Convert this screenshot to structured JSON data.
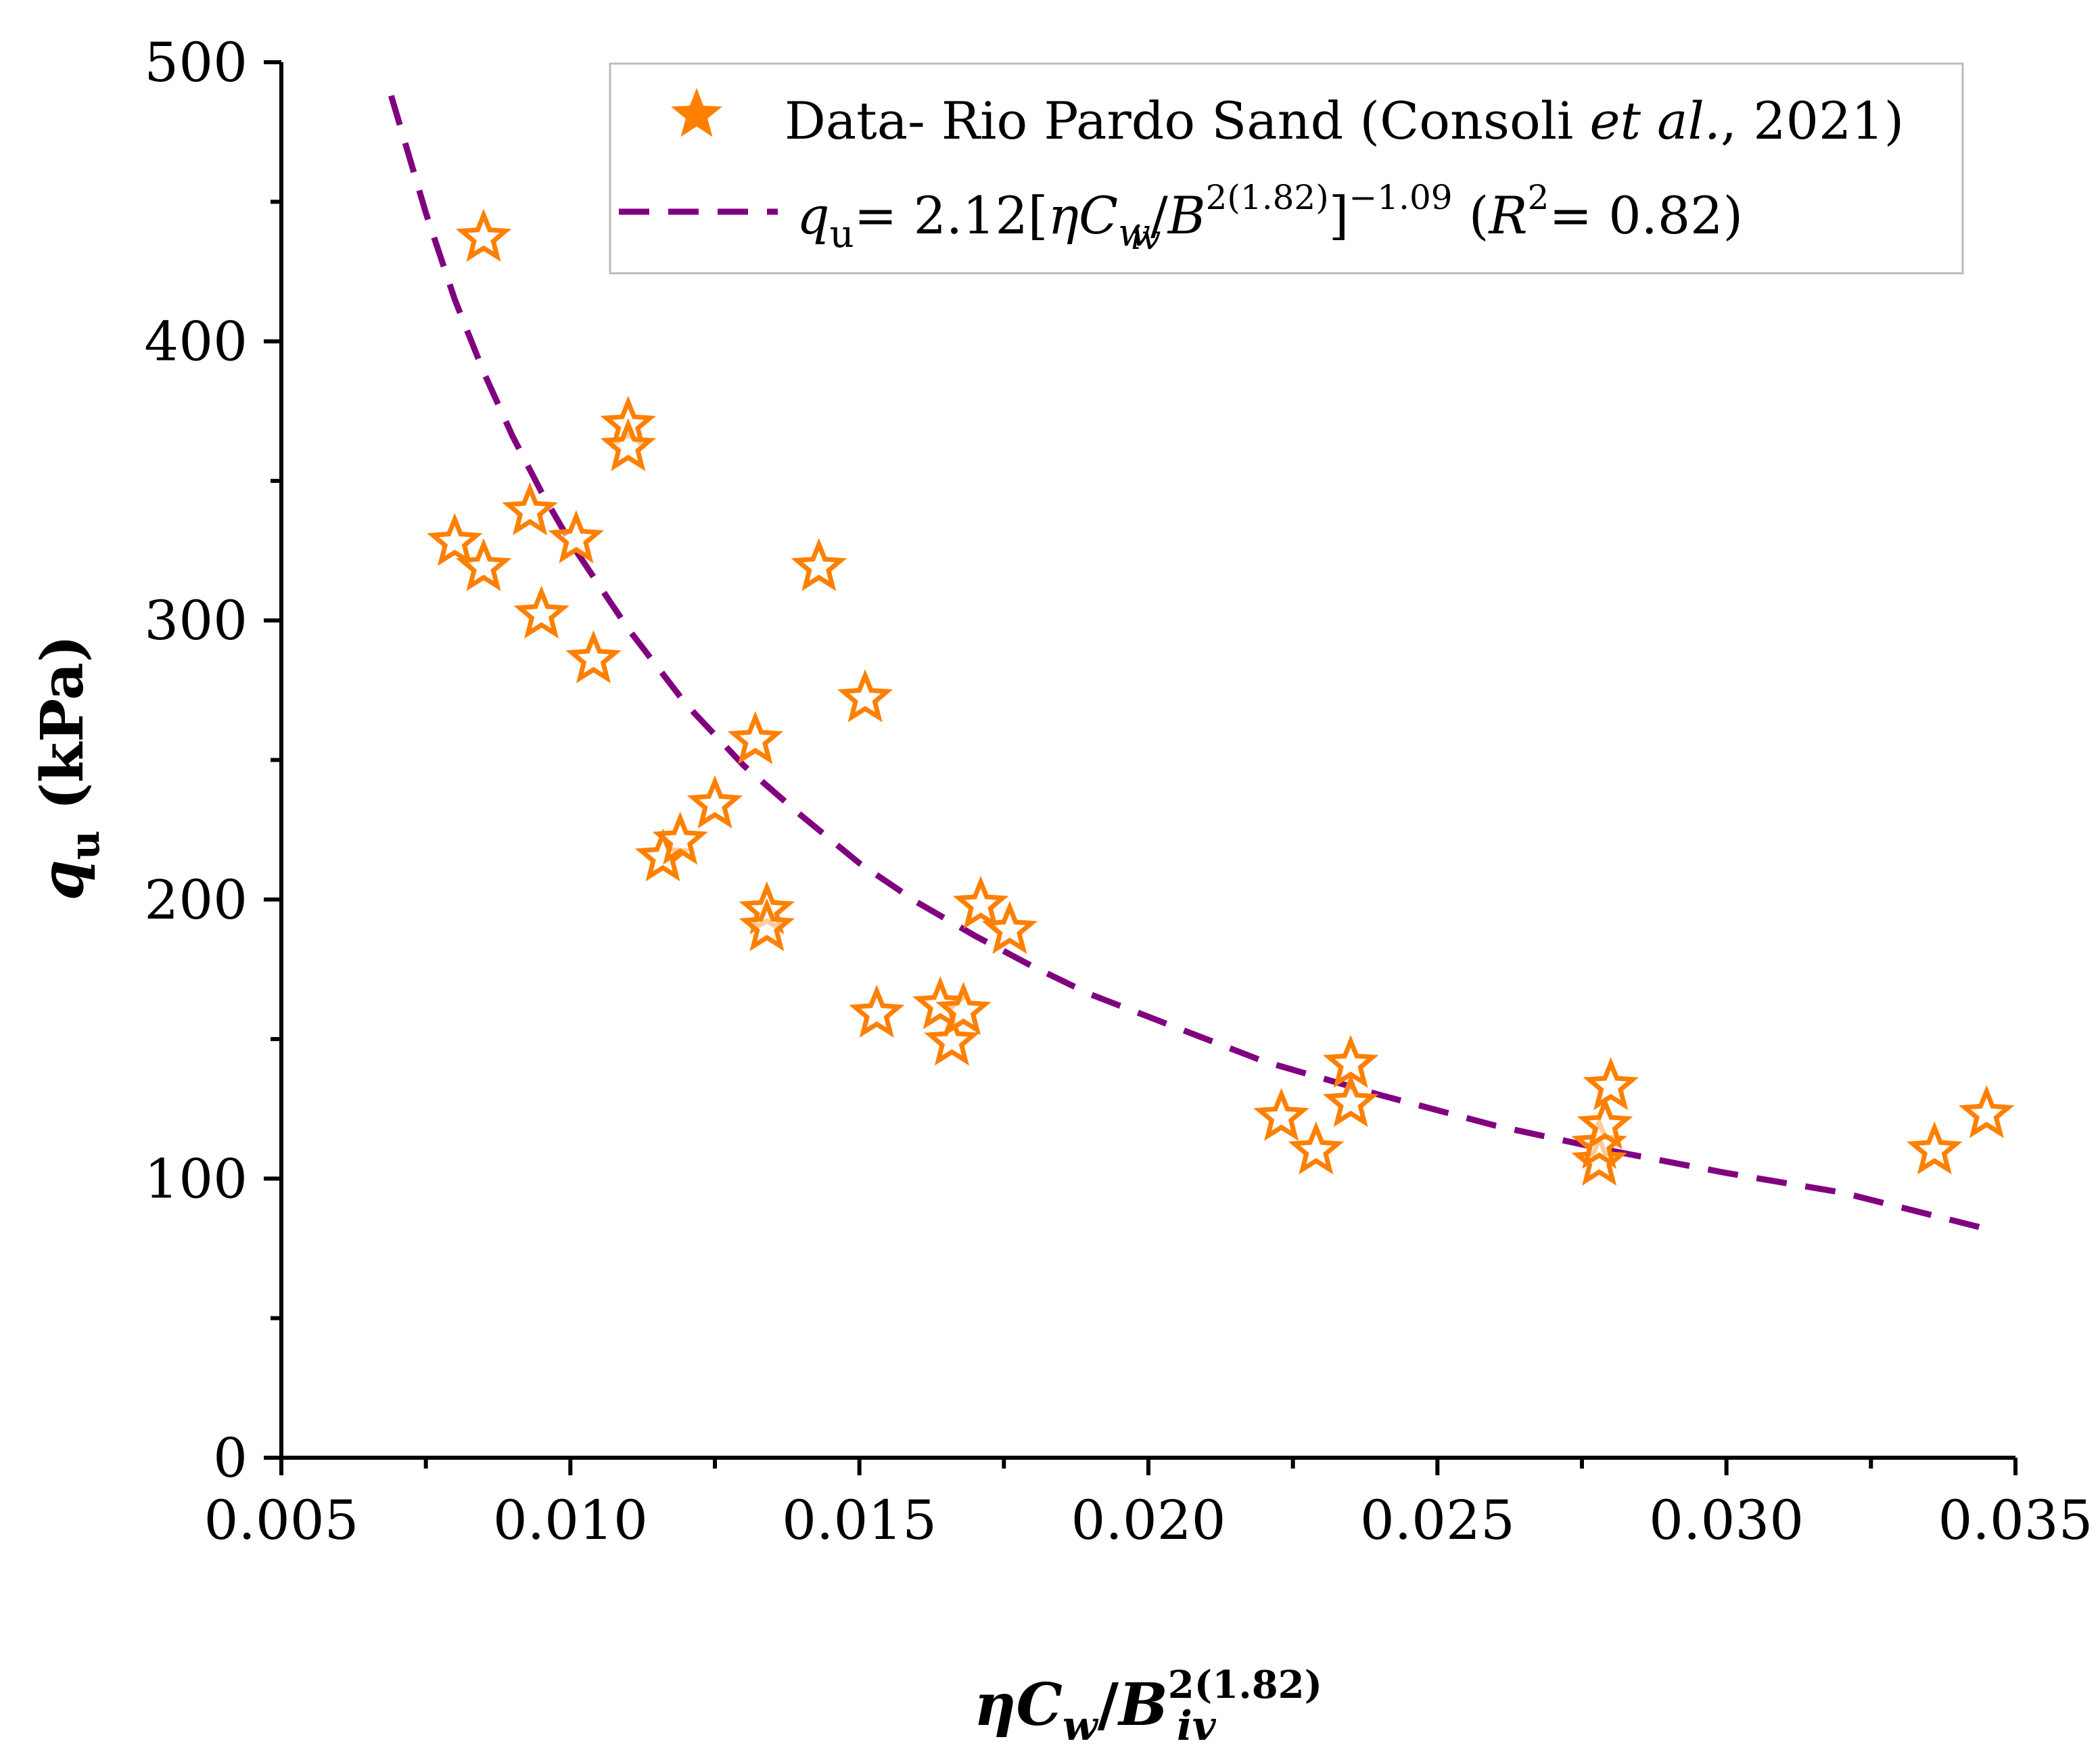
{
  "chart_data": {
    "type": "scatter",
    "title": "",
    "xlabel": "ηCw/Biv^2(1.82)",
    "xlabel_parts": {
      "eta": "η",
      "c": "C",
      "w": "w",
      "slash": "/",
      "b": "B",
      "sup": "2(1.82)",
      "sub": "iv"
    },
    "ylabel": "qu (kPa)",
    "ylabel_parts": {
      "q": "q",
      "sub": "u",
      "unit": " (kPa)"
    },
    "xlim": [
      0.005,
      0.035
    ],
    "ylim": [
      0,
      500
    ],
    "x_ticks": [
      0.005,
      0.01,
      0.015,
      0.02,
      0.025,
      0.03,
      0.035
    ],
    "x_tick_labels": [
      "0.005",
      "0.010",
      "0.015",
      "0.020",
      "0.025",
      "0.030",
      "0.035"
    ],
    "y_ticks": [
      0,
      100,
      200,
      300,
      400,
      500
    ],
    "y_tick_labels": [
      "0",
      "100",
      "200",
      "300",
      "400",
      "500"
    ],
    "grid": false,
    "legend_position": "top-right",
    "colors": {
      "data": "#FF8000",
      "fit": "#800080",
      "axis": "#000000",
      "legend_border": "#bbbbbb"
    },
    "series": [
      {
        "name": "Data- Rio Pardo Sand (Consoli et al., 2021)",
        "marker": "star-icon",
        "points": [
          {
            "x": 0.0085,
            "y": 437
          },
          {
            "x": 0.008,
            "y": 328
          },
          {
            "x": 0.0085,
            "y": 319
          },
          {
            "x": 0.0093,
            "y": 339
          },
          {
            "x": 0.0095,
            "y": 302
          },
          {
            "x": 0.0101,
            "y": 329
          },
          {
            "x": 0.0104,
            "y": 286
          },
          {
            "x": 0.011,
            "y": 370
          },
          {
            "x": 0.011,
            "y": 362
          },
          {
            "x": 0.0116,
            "y": 215
          },
          {
            "x": 0.0119,
            "y": 221
          },
          {
            "x": 0.0125,
            "y": 234
          },
          {
            "x": 0.0132,
            "y": 257
          },
          {
            "x": 0.0134,
            "y": 196
          },
          {
            "x": 0.0134,
            "y": 190
          },
          {
            "x": 0.0143,
            "y": 319
          },
          {
            "x": 0.0151,
            "y": 272
          },
          {
            "x": 0.0153,
            "y": 159
          },
          {
            "x": 0.0164,
            "y": 162
          },
          {
            "x": 0.0166,
            "y": 149
          },
          {
            "x": 0.0168,
            "y": 160
          },
          {
            "x": 0.0171,
            "y": 198
          },
          {
            "x": 0.0176,
            "y": 189
          },
          {
            "x": 0.0223,
            "y": 122
          },
          {
            "x": 0.0229,
            "y": 110
          },
          {
            "x": 0.0235,
            "y": 141
          },
          {
            "x": 0.0235,
            "y": 127
          },
          {
            "x": 0.0278,
            "y": 106
          },
          {
            "x": 0.0278,
            "y": 112
          },
          {
            "x": 0.0279,
            "y": 119
          },
          {
            "x": 0.028,
            "y": 133
          },
          {
            "x": 0.0336,
            "y": 110
          },
          {
            "x": 0.0345,
            "y": 123
          }
        ]
      },
      {
        "name": "qu= 2.12[ηCw/Biv^2(1.82)]^−1.09 (R^2= 0.82)",
        "style": "dashed",
        "curve": {
          "coefficient": 2.12,
          "exponent": -1.09,
          "r2": 0.82
        },
        "x": [
          0.0069,
          0.0075,
          0.008,
          0.0085,
          0.009,
          0.0095,
          0.01,
          0.011,
          0.012,
          0.013,
          0.014,
          0.015,
          0.016,
          0.017,
          0.018,
          0.019,
          0.02,
          0.022,
          0.024,
          0.026,
          0.028,
          0.03,
          0.032,
          0.0345
        ],
        "y": [
          488,
          446,
          415,
          389,
          366,
          346,
          328,
          297,
          270,
          248,
          230,
          213,
          199,
          187,
          176,
          166,
          158,
          142,
          130,
          119,
          110,
          102,
          95,
          82
        ]
      }
    ],
    "legend": {
      "data_label": "Data- Rio Pardo Sand (Consoli ",
      "data_label_italic": "et al.",
      "data_label_end": ", 2021)",
      "fit": {
        "q": "q",
        "q_sub": "u",
        "eq_start": "= 2.12[",
        "eta": "η",
        "c": "C",
        "w": "w",
        "slash": "/",
        "b": "B",
        "b_sup": "2(1.82)",
        "b_sub": "iv",
        "close": "]",
        "exp": "−1.09",
        "r_open": " (",
        "r": "R",
        "r_sup": "2",
        "r_end": "= 0.82)"
      }
    }
  }
}
